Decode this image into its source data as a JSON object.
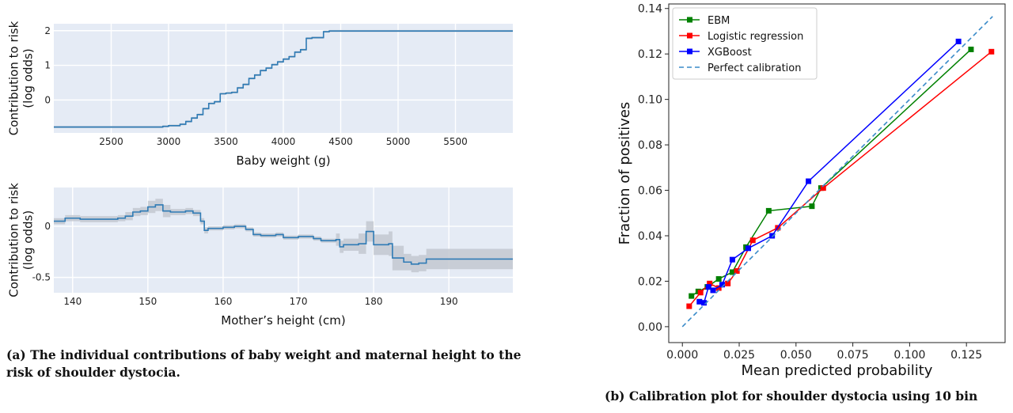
{
  "chart_data": [
    {
      "type": "line",
      "xlabel": "Baby weight (g)",
      "ylabel": "Contribution to risk\n(log odds)",
      "xlim": [
        2000,
        6000
      ],
      "ylim": [
        -0.95,
        2.2
      ],
      "xticks": [
        2500,
        3000,
        3500,
        4000,
        4500,
        5000,
        5500
      ],
      "yticks": [
        0,
        1,
        2
      ],
      "x": [
        2000,
        2900,
        2950,
        3000,
        3100,
        3150,
        3200,
        3250,
        3300,
        3350,
        3400,
        3450,
        3500,
        3550,
        3600,
        3650,
        3700,
        3750,
        3800,
        3850,
        3900,
        3950,
        4000,
        4050,
        4100,
        4150,
        4200,
        4250,
        4350,
        4400,
        6000
      ],
      "y": [
        -0.78,
        -0.78,
        -0.76,
        -0.74,
        -0.7,
        -0.62,
        -0.52,
        -0.42,
        -0.25,
        -0.1,
        -0.05,
        0.18,
        0.2,
        0.22,
        0.35,
        0.45,
        0.62,
        0.72,
        0.85,
        0.92,
        1.02,
        1.1,
        1.18,
        1.25,
        1.38,
        1.45,
        1.78,
        1.8,
        1.97,
        1.99,
        1.99
      ],
      "grid": true
    },
    {
      "type": "line",
      "xlabel": "Mother’s height (cm)",
      "ylabel": "Contribution to risk\n(log odds)",
      "xlim": [
        137.5,
        198.5
      ],
      "ylim": [
        -0.65,
        0.38
      ],
      "xticks": [
        140,
        150,
        160,
        170,
        180,
        190
      ],
      "yticks": [
        0,
        -0.5
      ],
      "x": [
        137.5,
        139,
        141,
        146,
        147,
        148,
        149,
        150,
        151,
        152,
        153,
        155,
        156,
        157,
        157.5,
        158,
        160,
        161.5,
        163,
        164,
        165,
        167,
        168,
        170,
        172,
        173,
        175,
        175.5,
        176,
        178,
        179,
        180,
        182,
        182.5,
        184,
        185,
        186,
        187,
        198.5
      ],
      "y": [
        0.05,
        0.08,
        0.07,
        0.08,
        0.1,
        0.14,
        0.15,
        0.19,
        0.21,
        0.15,
        0.14,
        0.15,
        0.13,
        0.05,
        -0.04,
        -0.02,
        -0.01,
        0.0,
        -0.03,
        -0.08,
        -0.09,
        -0.08,
        -0.11,
        -0.1,
        -0.12,
        -0.14,
        -0.13,
        -0.2,
        -0.18,
        -0.17,
        -0.05,
        -0.18,
        -0.17,
        -0.31,
        -0.35,
        -0.37,
        -0.36,
        -0.32,
        -0.32
      ],
      "grid": true
    },
    {
      "type": "line",
      "xlabel": "Mean predicted probability",
      "ylabel": "Fraction of positives",
      "xlim": [
        -0.006,
        0.142
      ],
      "ylim": [
        -0.007,
        0.142
      ],
      "xticks": [
        "0.000",
        "0.025",
        "0.050",
        "0.075",
        "0.100",
        "0.125"
      ],
      "yticks": [
        "0.00",
        "0.02",
        "0.04",
        "0.06",
        "0.08",
        "0.10",
        "0.12",
        "0.14"
      ],
      "legend": "top-left",
      "series": [
        {
          "name": "EBM",
          "color": "#008000",
          "x": [
            0.004,
            0.007,
            0.011,
            0.016,
            0.022,
            0.028,
            0.038,
            0.057,
            0.061,
            0.127
          ],
          "y": [
            0.0135,
            0.0155,
            0.0175,
            0.021,
            0.024,
            0.035,
            0.051,
            0.053,
            0.061,
            0.122
          ]
        },
        {
          "name": "Logistic regression",
          "color": "#ff0000",
          "x": [
            0.003,
            0.008,
            0.012,
            0.016,
            0.02,
            0.024,
            0.031,
            0.042,
            0.062,
            0.136
          ],
          "y": [
            0.009,
            0.015,
            0.019,
            0.017,
            0.019,
            0.0245,
            0.038,
            0.0435,
            0.061,
            0.121
          ]
        },
        {
          "name": "XGBoost",
          "color": "#0000ff",
          "x": [
            0.0075,
            0.0095,
            0.0115,
            0.0135,
            0.0175,
            0.022,
            0.029,
            0.0395,
            0.0555,
            0.1215
          ],
          "y": [
            0.011,
            0.0105,
            0.0175,
            0.016,
            0.0185,
            0.0295,
            0.0345,
            0.04,
            0.064,
            0.1255
          ]
        },
        {
          "name": "Perfect calibration",
          "color": "#3a8bc9",
          "dashed": true,
          "x": [
            0,
            0.1365
          ],
          "y": [
            0,
            0.1365
          ]
        }
      ]
    }
  ],
  "captions": {
    "a": "(a) The individual contributions of baby weight and maternal height to the risk of shoulder dystocia.",
    "b": "(b) Calibration plot for shoulder dystocia using 10 bin"
  }
}
